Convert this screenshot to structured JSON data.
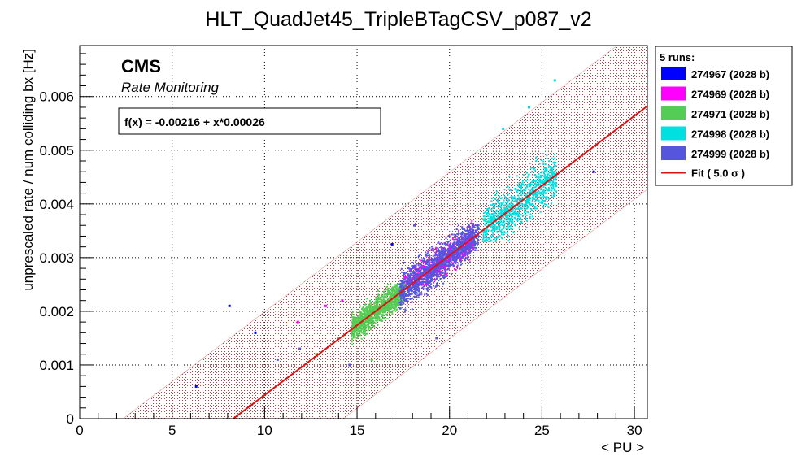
{
  "chart_data": {
    "type": "scatter",
    "title": "HLT_QuadJet45_TripleBTagCSV_p087_v2",
    "xlabel": "< PU >",
    "ylabel": "unprescaled rate / num colliding bx [Hz]",
    "xlim": [
      0,
      30.7
    ],
    "ylim": [
      0,
      0.00695
    ],
    "x_ticks": [
      0,
      5,
      10,
      15,
      20,
      25,
      30
    ],
    "y_ticks": [
      0,
      0.001,
      0.002,
      0.003,
      0.004,
      0.005,
      0.006
    ],
    "x_tick_labels": [
      "0",
      "5",
      "10",
      "15",
      "20",
      "25",
      "30"
    ],
    "y_tick_labels": [
      "0",
      "0.001",
      "0.002",
      "0.003",
      "0.004",
      "0.005",
      "0.006"
    ],
    "grid": true,
    "legend_position": "outside-right",
    "legend_header": "5 runs:",
    "experiment": "CMS",
    "subtitle": "Rate Monitoring",
    "fit_formula": "f(x) = -0.00216 + x*0.00026",
    "fit": {
      "name": "Fit ( 5.0 σ )",
      "intercept": -0.00216,
      "slope": 0.00026,
      "band_halfwidth": 0.00155,
      "color": "#dd1111"
    },
    "series": [
      {
        "name": "274967 (2028 b)",
        "color": "#0000ff",
        "clusters": [],
        "outliers": [
          [
            6.3,
            0.0006
          ],
          [
            8.1,
            0.0021
          ],
          [
            9.5,
            0.0016
          ],
          [
            27.8,
            0.0046
          ],
          [
            16.9,
            0.00325
          ]
        ]
      },
      {
        "name": "274969 (2028 b)",
        "color": "#ff00ff",
        "clusters": [
          {
            "x": [
              17.5,
              21.3
            ],
            "y": [
              0.0025,
              0.0039
            ],
            "n": 700,
            "trend": true
          }
        ],
        "outliers": [
          [
            11.8,
            0.0018
          ],
          [
            13.3,
            0.0021
          ],
          [
            14.2,
            0.0022
          ]
        ]
      },
      {
        "name": "274971 (2028 b)",
        "color": "#55cc55",
        "clusters": [
          {
            "x": [
              14.7,
              17.6
            ],
            "y": [
              0.0013,
              0.0025
            ],
            "n": 1300,
            "trend": true
          }
        ],
        "outliers": [
          [
            12.8,
            0.0012
          ],
          [
            14.0,
            0.0015
          ],
          [
            15.8,
            0.0011
          ]
        ]
      },
      {
        "name": "274998 (2028 b)",
        "color": "#00e0e0",
        "clusters": [
          {
            "x": [
              21.8,
              25.8
            ],
            "y": [
              0.0033,
              0.0054
            ],
            "n": 900,
            "trend": true
          }
        ],
        "outliers": [
          [
            22.9,
            0.0054
          ],
          [
            25.7,
            0.0063
          ],
          [
            24.3,
            0.0058
          ]
        ]
      },
      {
        "name": "274999 (2028 b)",
        "color": "#5555dd",
        "clusters": [
          {
            "x": [
              17.3,
              21.6
            ],
            "y": [
              0.0019,
              0.0036
            ],
            "n": 1300,
            "trend": true
          }
        ],
        "outliers": [
          [
            10.7,
            0.0011
          ],
          [
            11.9,
            0.0013
          ],
          [
            14.6,
            0.001
          ],
          [
            19.3,
            0.0015
          ],
          [
            18.1,
            0.0036
          ]
        ]
      }
    ]
  }
}
